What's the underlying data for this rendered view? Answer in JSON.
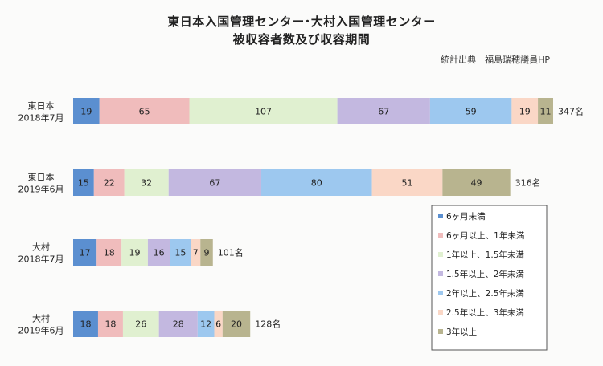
{
  "chart_data": {
    "type": "bar",
    "orientation": "horizontal",
    "stacked": true,
    "title": "東日本入国管理センター･大村入国管理センター",
    "subtitle": "被収容者数及び収容期間",
    "source": "統計出典　福島瑞穂議員HP",
    "categories": [
      {
        "line1": "東日本",
        "line2": "2018年7月",
        "total_label": "347名"
      },
      {
        "line1": "東日本",
        "line2": "2019年6月",
        "total_label": "316名"
      },
      {
        "line1": "大村",
        "line2": "2018年7月",
        "total_label": "101名"
      },
      {
        "line1": "大村",
        "line2": "2019年6月",
        "total_label": "128名"
      }
    ],
    "series": [
      {
        "name": "6ヶ月未満",
        "color": "#5b8fd0",
        "values": [
          19,
          15,
          17,
          18
        ]
      },
      {
        "name": "6ヶ月以上、1年未満",
        "color": "#f0bcbc",
        "values": [
          65,
          22,
          18,
          18
        ]
      },
      {
        "name": "1年以上、1.5年未満",
        "color": "#e0f0d0",
        "values": [
          107,
          32,
          19,
          26
        ]
      },
      {
        "name": "1.5年以上、2年未満",
        "color": "#c3b8e0",
        "values": [
          67,
          67,
          16,
          28
        ]
      },
      {
        "name": "2年以上、2.5年未満",
        "color": "#9dc8ef",
        "values": [
          59,
          80,
          15,
          12
        ]
      },
      {
        "name": "2.5年以上、3年未満",
        "color": "#fad7c6",
        "values": [
          19,
          51,
          7,
          6
        ]
      },
      {
        "name": "3年以上",
        "color": "#b8b48f",
        "values": [
          11,
          49,
          9,
          20
        ]
      }
    ],
    "xlim": [
      0,
      347
    ],
    "grid": false,
    "legend_position": "bottom-right"
  }
}
